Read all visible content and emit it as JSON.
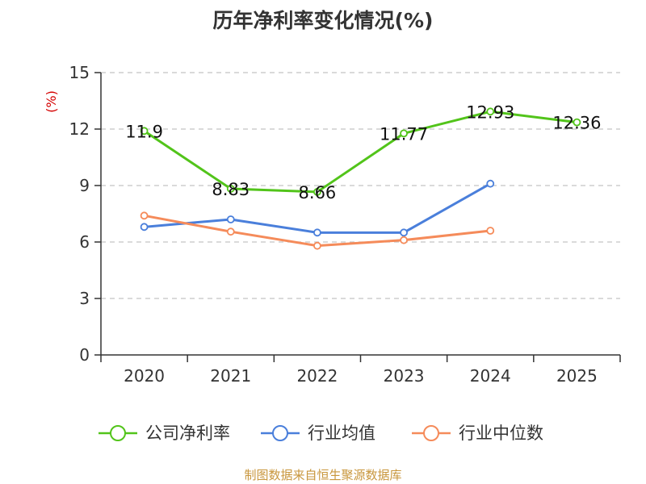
{
  "chart_data": {
    "type": "line",
    "title": "历年净利率变化情况(%)",
    "ylabel": "(%)",
    "categories": [
      "2020",
      "2021",
      "2022",
      "2023",
      "2024",
      "2025"
    ],
    "yticks": [
      "0",
      "3",
      "6",
      "9",
      "12",
      "15"
    ],
    "ylim": [
      0,
      15
    ],
    "grid": true,
    "legend_position": "bottom",
    "series": [
      {
        "name": "公司净利率",
        "color": "#52c41a",
        "values": [
          11.9,
          8.83,
          8.66,
          11.77,
          12.93,
          12.36
        ],
        "labels": [
          "11.9",
          "8.83",
          "8.66",
          "11.77",
          "12.93",
          "12.36"
        ]
      },
      {
        "name": "行业均值",
        "color": "#4a7fdb",
        "values": [
          6.8,
          7.2,
          6.5,
          6.5,
          9.1,
          null
        ]
      },
      {
        "name": "行业中位数",
        "color": "#f58b5a",
        "values": [
          7.4,
          6.55,
          5.8,
          6.1,
          6.6,
          null
        ]
      }
    ]
  },
  "footer": {
    "source": "制图数据来自恒生聚源数据库"
  }
}
